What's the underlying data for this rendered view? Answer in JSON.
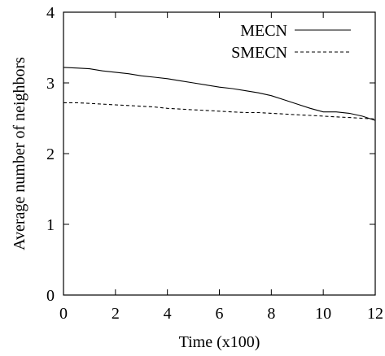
{
  "chart_data": {
    "type": "line",
    "xlabel": "Time (x100)",
    "ylabel": "Average number of neighbors",
    "xlim": [
      0,
      12
    ],
    "ylim": [
      0,
      4
    ],
    "xticks": [
      0,
      2,
      4,
      6,
      8,
      10,
      12
    ],
    "yticks": [
      0,
      1,
      2,
      3,
      4
    ],
    "xtick_labels": [
      "0",
      "2",
      "4",
      "6",
      "8",
      "10",
      "12"
    ],
    "ytick_labels": [
      "0",
      "1",
      "2",
      "3",
      "4"
    ],
    "grid": false,
    "legend_position": "top-right",
    "series": [
      {
        "name": "MECN",
        "style": "solid",
        "color": "#000000",
        "x": [
          0,
          0.5,
          1,
          1.5,
          2,
          2.5,
          3,
          3.5,
          4,
          4.5,
          5,
          5.5,
          6,
          6.5,
          7,
          7.5,
          8,
          8.5,
          9,
          9.5,
          10,
          10.5,
          11,
          11.5,
          12
        ],
        "y": [
          3.22,
          3.21,
          3.2,
          3.17,
          3.15,
          3.13,
          3.1,
          3.08,
          3.06,
          3.03,
          3.0,
          2.97,
          2.94,
          2.92,
          2.89,
          2.86,
          2.82,
          2.76,
          2.7,
          2.64,
          2.59,
          2.59,
          2.57,
          2.53,
          2.47
        ]
      },
      {
        "name": "SMECN",
        "style": "dashed",
        "color": "#000000",
        "x": [
          0,
          0.5,
          1,
          1.5,
          2,
          2.5,
          3,
          3.5,
          4,
          4.5,
          5,
          5.5,
          6,
          6.5,
          7,
          7.5,
          8,
          8.5,
          9,
          9.5,
          10,
          10.5,
          11,
          11.5,
          12
        ],
        "y": [
          2.72,
          2.72,
          2.71,
          2.7,
          2.69,
          2.68,
          2.67,
          2.66,
          2.64,
          2.63,
          2.62,
          2.61,
          2.6,
          2.59,
          2.58,
          2.58,
          2.57,
          2.56,
          2.55,
          2.54,
          2.53,
          2.52,
          2.51,
          2.5,
          2.49
        ]
      }
    ]
  }
}
